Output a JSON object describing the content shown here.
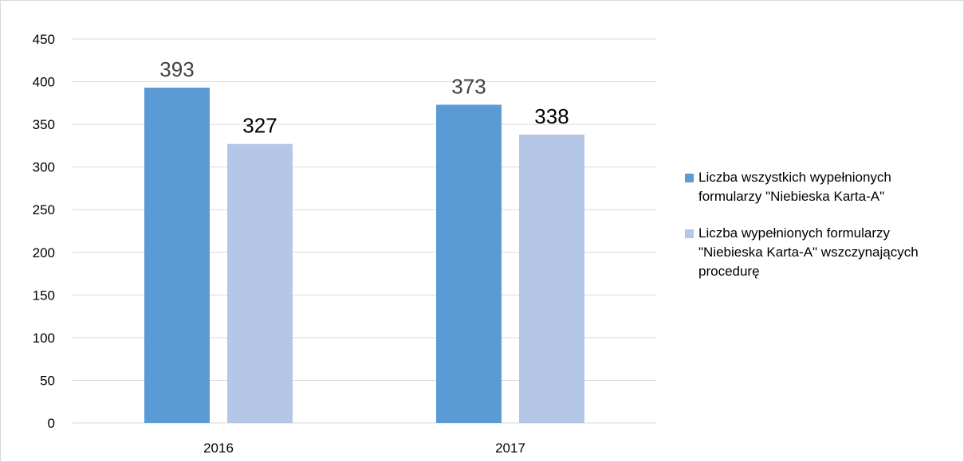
{
  "chart_data": {
    "type": "bar",
    "categories": [
      "2016",
      "2017"
    ],
    "series": [
      {
        "name": "Liczba wszystkich wypełnionych formularzy \"Niebieska Karta-A\"",
        "values": [
          393,
          373
        ],
        "color": "#5b9bd5",
        "label_color": "#404040"
      },
      {
        "name": "Liczba wypełnionych formularzy \"Niebieska Karta-A\" wszczynających procedurę",
        "values": [
          327,
          338
        ],
        "color": "#b4c7e7",
        "label_color": "#000000"
      }
    ],
    "ylim": [
      0,
      450
    ],
    "yticks": [
      0,
      50,
      100,
      150,
      200,
      250,
      300,
      350,
      400,
      450
    ],
    "grid": true,
    "legend_position": "right",
    "data_labels": true,
    "title": "",
    "xlabel": "",
    "ylabel": ""
  },
  "colors": {
    "gridline": "#d9d9d9",
    "axis_text": "#000000"
  }
}
